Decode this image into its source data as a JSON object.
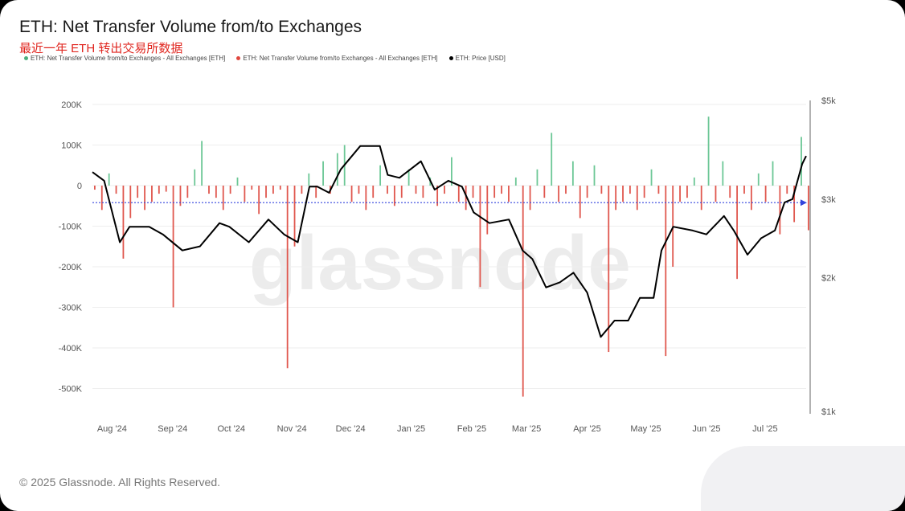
{
  "header": {
    "title": "ETH: Net Transfer Volume from/to Exchanges",
    "subtitle": "最近一年 ETH 转出交易所数据"
  },
  "legend": [
    {
      "label": "ETH: Net Transfer Volume from/to Exchanges - All Exchanges [ETH]",
      "color": "#4caf7d"
    },
    {
      "label": "ETH: Net Transfer Volume from/to Exchanges - All Exchanges [ETH]",
      "color": "#e0473e"
    },
    {
      "label": "ETH: Price [USD]",
      "color": "#000000"
    }
  ],
  "watermark": "glassnode",
  "footer": "© 2025 Glassnode. All Rights Reserved.",
  "chart_data": {
    "type": "bar+line",
    "title": "ETH: Net Transfer Volume from/to Exchanges",
    "start_date": "2024-07-22",
    "end_date": "2025-07-22",
    "left_axis": {
      "ticks": [
        {
          "v": 200,
          "label": "200K"
        },
        {
          "v": 100,
          "label": "100K"
        },
        {
          "v": 0,
          "label": "0"
        },
        {
          "v": -100,
          "label": "-100K"
        },
        {
          "v": -200,
          "label": "-200K"
        },
        {
          "v": -300,
          "label": "-300K"
        },
        {
          "v": -400,
          "label": "-400K"
        },
        {
          "v": -500,
          "label": "-500K"
        }
      ],
      "unit": "K ETH",
      "range": [
        -570,
        200
      ]
    },
    "right_axis": {
      "scale": "log",
      "range": [
        1000,
        5000
      ],
      "ticks": [
        {
          "v": 5000,
          "label": "$5k"
        },
        {
          "v": 3000,
          "label": "$3k"
        },
        {
          "v": 2000,
          "label": "$2k"
        },
        {
          "v": 1000,
          "label": "$1k"
        }
      ]
    },
    "x_ticks": [
      {
        "date": "2024-08-01",
        "label": "Aug '24"
      },
      {
        "date": "2024-09-01",
        "label": "Sep '24"
      },
      {
        "date": "2024-10-01",
        "label": "Oct '24"
      },
      {
        "date": "2024-11-01",
        "label": "Nov '24"
      },
      {
        "date": "2024-12-01",
        "label": "Dec '24"
      },
      {
        "date": "2025-01-01",
        "label": "Jan '25"
      },
      {
        "date": "2025-02-01",
        "label": "Feb '25"
      },
      {
        "date": "2025-03-01",
        "label": "Mar '25"
      },
      {
        "date": "2025-04-01",
        "label": "Apr '25"
      },
      {
        "date": "2025-05-01",
        "label": "May '25"
      },
      {
        "date": "2025-06-01",
        "label": "Jun '25"
      },
      {
        "date": "2025-07-01",
        "label": "Jul '25"
      }
    ],
    "flow_step_days": 3.65,
    "flows_k": [
      -10,
      -60,
      30,
      -20,
      -180,
      -80,
      -30,
      -60,
      -40,
      -20,
      -15,
      -300,
      -50,
      -30,
      40,
      110,
      -20,
      -30,
      -60,
      -20,
      20,
      -40,
      -10,
      -70,
      -30,
      -20,
      -10,
      -450,
      -150,
      -20,
      30,
      -30,
      60,
      -20,
      80,
      100,
      -40,
      -20,
      -60,
      -30,
      50,
      -20,
      -50,
      -30,
      40,
      -20,
      -30,
      20,
      -50,
      -20,
      70,
      -40,
      -60,
      -30,
      -250,
      -120,
      -30,
      -20,
      -40,
      20,
      -520,
      -60,
      40,
      -30,
      130,
      -40,
      -20,
      60,
      -80,
      -30,
      50,
      -20,
      -410,
      -60,
      -40,
      -20,
      -60,
      -30,
      40,
      -20,
      -420,
      -200,
      -40,
      -30,
      20,
      -60,
      170,
      -40,
      60,
      -30,
      -230,
      -20,
      -60,
      30,
      -40,
      60,
      -120,
      -20,
      -90,
      120,
      -110
    ],
    "price": [
      [
        "2024-07-22",
        3450
      ],
      [
        "2024-07-28",
        3300
      ],
      [
        "2024-08-05",
        2400
      ],
      [
        "2024-08-10",
        2600
      ],
      [
        "2024-08-20",
        2600
      ],
      [
        "2024-08-27",
        2500
      ],
      [
        "2024-09-06",
        2300
      ],
      [
        "2024-09-15",
        2350
      ],
      [
        "2024-09-25",
        2650
      ],
      [
        "2024-09-30",
        2600
      ],
      [
        "2024-10-10",
        2400
      ],
      [
        "2024-10-20",
        2700
      ],
      [
        "2024-10-28",
        2500
      ],
      [
        "2024-11-04",
        2400
      ],
      [
        "2024-11-10",
        3200
      ],
      [
        "2024-11-14",
        3200
      ],
      [
        "2024-11-20",
        3100
      ],
      [
        "2024-11-26",
        3500
      ],
      [
        "2024-12-06",
        3950
      ],
      [
        "2024-12-16",
        3950
      ],
      [
        "2024-12-20",
        3400
      ],
      [
        "2024-12-26",
        3350
      ],
      [
        "2025-01-06",
        3650
      ],
      [
        "2025-01-13",
        3150
      ],
      [
        "2025-01-20",
        3300
      ],
      [
        "2025-01-27",
        3200
      ],
      [
        "2025-02-02",
        2800
      ],
      [
        "2025-02-10",
        2650
      ],
      [
        "2025-02-20",
        2700
      ],
      [
        "2025-02-27",
        2300
      ],
      [
        "2025-03-04",
        2200
      ],
      [
        "2025-03-11",
        1900
      ],
      [
        "2025-03-18",
        1950
      ],
      [
        "2025-03-25",
        2050
      ],
      [
        "2025-04-01",
        1850
      ],
      [
        "2025-04-08",
        1470
      ],
      [
        "2025-04-15",
        1600
      ],
      [
        "2025-04-22",
        1600
      ],
      [
        "2025-04-28",
        1800
      ],
      [
        "2025-05-05",
        1800
      ],
      [
        "2025-05-09",
        2300
      ],
      [
        "2025-05-15",
        2600
      ],
      [
        "2025-05-25",
        2550
      ],
      [
        "2025-06-01",
        2500
      ],
      [
        "2025-06-10",
        2750
      ],
      [
        "2025-06-15",
        2550
      ],
      [
        "2025-06-22",
        2250
      ],
      [
        "2025-06-29",
        2450
      ],
      [
        "2025-07-06",
        2550
      ],
      [
        "2025-07-11",
        2950
      ],
      [
        "2025-07-15",
        3000
      ],
      [
        "2025-07-20",
        3600
      ],
      [
        "2025-07-22",
        3750
      ]
    ]
  }
}
